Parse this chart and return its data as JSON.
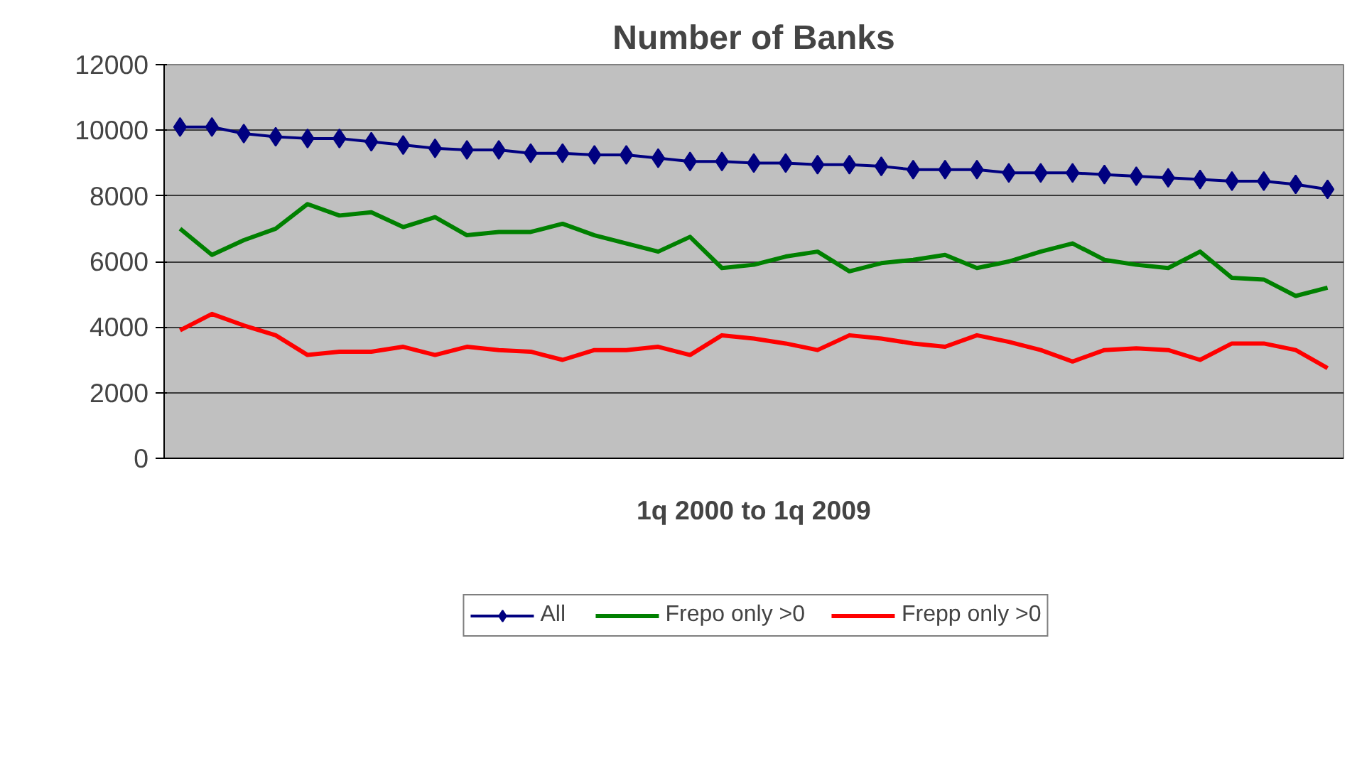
{
  "chart_data": {
    "type": "line",
    "title": "Number of Banks",
    "xlabel": "1q 2000 to 1q 2009",
    "categories": [
      null,
      null,
      null,
      null,
      null,
      null,
      null,
      null,
      null,
      null,
      null,
      null,
      null,
      null,
      null,
      null,
      null,
      null,
      null,
      null,
      null,
      null,
      null,
      null,
      null,
      null,
      null,
      null,
      null,
      null,
      null,
      null,
      null,
      null,
      null,
      null,
      null
    ],
    "series": [
      {
        "name": "All",
        "color": "#000080",
        "marker": "diamond",
        "values": [
          10100,
          10100,
          9900,
          9800,
          9750,
          9750,
          9650,
          9550,
          9450,
          9400,
          9400,
          9300,
          9300,
          9250,
          9250,
          9150,
          9050,
          9050,
          9000,
          9000,
          8950,
          8950,
          8900,
          8800,
          8800,
          8800,
          8700,
          8700,
          8700,
          8650,
          8600,
          8550,
          8500,
          8450,
          8450,
          8350,
          8200
        ]
      },
      {
        "name": "Frepo only >0",
        "color": "#008000",
        "marker": "none",
        "values": [
          7000,
          6200,
          6650,
          7000,
          7750,
          7400,
          7500,
          7050,
          7350,
          6800,
          6900,
          6900,
          7150,
          6800,
          6550,
          6300,
          6750,
          5800,
          5900,
          6150,
          6300,
          5700,
          5950,
          6050,
          6200,
          5800,
          6000,
          6300,
          6550,
          6050,
          5900,
          5800,
          6300,
          5500,
          5450,
          4950,
          5200
        ]
      },
      {
        "name": "Frepp only >0",
        "color": "#ff0000",
        "marker": "none",
        "values": [
          3900,
          4400,
          4050,
          3750,
          3150,
          3250,
          3250,
          3400,
          3150,
          3400,
          3300,
          3250,
          3000,
          3300,
          3300,
          3400,
          3150,
          3750,
          3650,
          3500,
          3300,
          3750,
          3650,
          3500,
          3400,
          3750,
          3550,
          3300,
          2950,
          3300,
          3350,
          3300,
          3000,
          3500,
          3500,
          3300,
          2750
        ]
      }
    ],
    "ylim": [
      0,
      12000
    ],
    "yticks": [
      0,
      2000,
      4000,
      6000,
      8000,
      10000,
      12000
    ],
    "grid": "y",
    "legend": "bottom",
    "tick_labels": "y",
    "line_style": "solid"
  }
}
